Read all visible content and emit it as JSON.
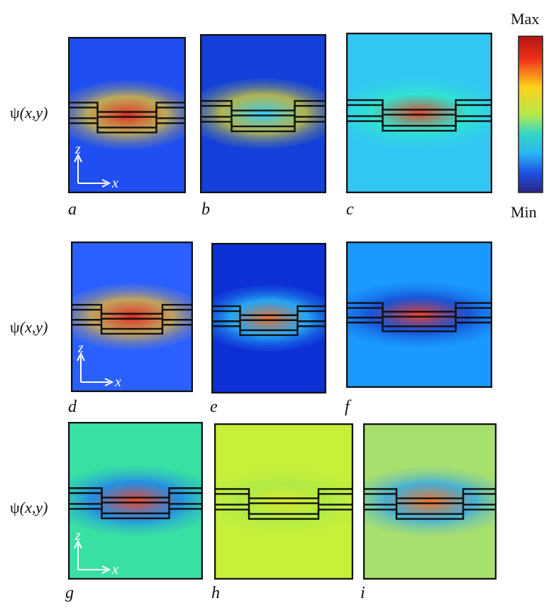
{
  "row_label": {
    "psi": "ψ",
    "args": "(x,y)"
  },
  "colorbar": {
    "max": "Max",
    "min": "Min"
  },
  "axes": {
    "z": "z",
    "x": "x"
  },
  "panels": [
    {
      "letter": "a",
      "bg": "#1f4ff0",
      "glow": "#e8261c",
      "glow2": "#ffd11a"
    },
    {
      "letter": "b",
      "bg": "#1240d8",
      "glow": "#2fd3ff",
      "glow2": "#f2e51a"
    },
    {
      "letter": "c",
      "bg": "#32c6f2",
      "glow": "#f03b1a",
      "glow2": "#2ef0c4"
    },
    {
      "letter": "d",
      "bg": "#2a60ff",
      "glow": "#e8201a",
      "glow2": "#ffbf1a"
    },
    {
      "letter": "e",
      "bg": "#0c2fd6",
      "glow": "#ff6e1a",
      "glow2": "#2fd8ff"
    },
    {
      "letter": "f",
      "bg": "#1a9aff",
      "glow": "#ff3b1a",
      "glow2": "#1636c9"
    },
    {
      "letter": "g",
      "bg": "#38e0a4",
      "glow": "#ff3e1a",
      "glow2": "#1a6cff"
    },
    {
      "letter": "h",
      "bg": "#c7f03a",
      "glow": "#d8e82a",
      "glow2": "#a8e84a"
    },
    {
      "letter": "i",
      "bg": "#a8e070",
      "glow": "#ff6a1a",
      "glow2": "#1f9bff"
    }
  ]
}
